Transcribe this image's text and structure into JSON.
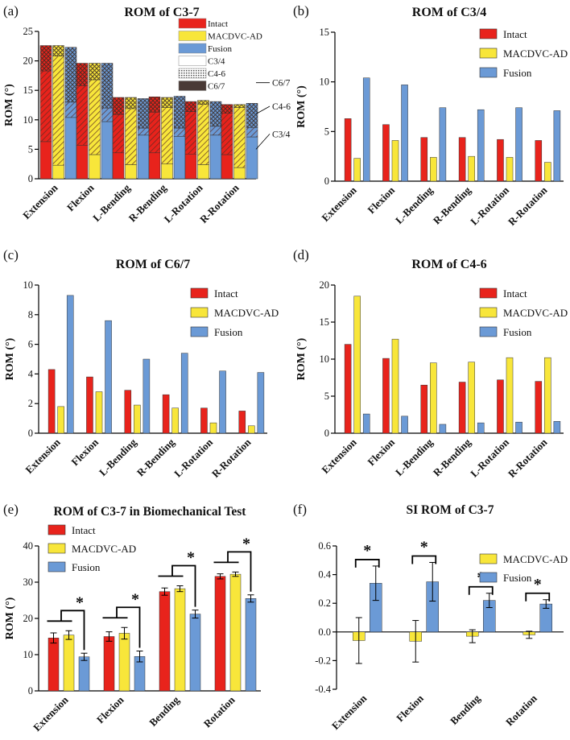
{
  "colors": {
    "intact": "#e8231c",
    "macdvc": "#f8e63a",
    "fusion": "#6b9ad6",
    "errbar": "#000000",
    "hatch": "#5a2a22"
  },
  "legend_labels": {
    "intact": "Intact",
    "macdvc": "MACDVC-AD",
    "fusion": "Fusion",
    "c34": "C3/4",
    "c46": "C4-6",
    "c67": "C6/7"
  },
  "chart_data": [
    {
      "panel": "(a)",
      "type": "bar",
      "stacked": true,
      "title": "ROM of C3-7",
      "ylabel": "ROM (°)",
      "ylim": [
        0,
        25
      ],
      "yticks": [
        0,
        5,
        10,
        15,
        20,
        25
      ],
      "categories": [
        "Extension",
        "Flexion",
        "L-Bending",
        "R-Bending",
        "L-Rotation",
        "R-Rotation"
      ],
      "groups": [
        "Intact",
        "MACDVC-AD",
        "Fusion"
      ],
      "segments": [
        "C3/4",
        "C4-6",
        "C6/7"
      ],
      "series": [
        {
          "name": "Intact",
          "c34": [
            6.3,
            5.7,
            4.4,
            4.4,
            4.2,
            4.1
          ],
          "c46": [
            12.0,
            10.1,
            6.5,
            6.9,
            7.2,
            7.0
          ],
          "c67": [
            4.3,
            3.8,
            2.9,
            2.6,
            1.7,
            1.5
          ]
        },
        {
          "name": "MACDVC-AD",
          "c34": [
            2.3,
            4.1,
            2.4,
            2.5,
            2.4,
            1.9
          ],
          "c46": [
            18.5,
            12.7,
            9.5,
            9.6,
            10.2,
            10.2
          ],
          "c67": [
            1.8,
            2.8,
            1.9,
            1.7,
            0.7,
            0.5
          ]
        },
        {
          "name": "Fusion",
          "c34": [
            10.4,
            9.7,
            7.4,
            7.2,
            7.4,
            7.1
          ],
          "c46": [
            2.6,
            2.3,
            1.2,
            1.4,
            1.5,
            1.6
          ],
          "c67": [
            9.3,
            7.6,
            5.0,
            5.4,
            4.2,
            4.1
          ]
        }
      ],
      "annotations": [
        "C6/7",
        "C4-6",
        "C3/4"
      ]
    },
    {
      "panel": "(b)",
      "type": "bar",
      "title": "ROM of C3/4",
      "ylabel": "ROM (°)",
      "ylim": [
        0,
        15
      ],
      "yticks": [
        0,
        5,
        10,
        15
      ],
      "categories": [
        "Extension",
        "Flexion",
        "L-Bending",
        "R-Bending",
        "L-Rotation",
        "R-Rotation"
      ],
      "series": [
        {
          "name": "Intact",
          "values": [
            6.3,
            5.7,
            4.4,
            4.4,
            4.2,
            4.1
          ]
        },
        {
          "name": "MACDVC-AD",
          "values": [
            2.3,
            4.1,
            2.4,
            2.5,
            2.4,
            1.9
          ]
        },
        {
          "name": "Fusion",
          "values": [
            10.4,
            9.7,
            7.4,
            7.2,
            7.4,
            7.1
          ]
        }
      ]
    },
    {
      "panel": "(c)",
      "type": "bar",
      "title": "ROM of C6/7",
      "ylabel": "ROM (°)",
      "ylim": [
        0,
        10
      ],
      "yticks": [
        0,
        2,
        4,
        6,
        8,
        10
      ],
      "categories": [
        "Extension",
        "Flexion",
        "L-Bending",
        "R-Bending",
        "L-Rotation",
        "R-Rotation"
      ],
      "series": [
        {
          "name": "Intact",
          "values": [
            4.3,
            3.8,
            2.9,
            2.6,
            1.7,
            1.5
          ]
        },
        {
          "name": "MACDVC-AD",
          "values": [
            1.8,
            2.8,
            1.9,
            1.7,
            0.7,
            0.5
          ]
        },
        {
          "name": "Fusion",
          "values": [
            9.3,
            7.6,
            5.0,
            5.4,
            4.2,
            4.1
          ]
        }
      ]
    },
    {
      "panel": "(d)",
      "type": "bar",
      "title": "ROM of C4-6",
      "ylabel": "ROM (°)",
      "ylim": [
        0,
        20
      ],
      "yticks": [
        0,
        5,
        10,
        15,
        20
      ],
      "categories": [
        "Extension",
        "Flexion",
        "L-Bending",
        "R-Bending",
        "L-Rotation",
        "R-Rotation"
      ],
      "series": [
        {
          "name": "Intact",
          "values": [
            12.0,
            10.1,
            6.5,
            6.9,
            7.2,
            7.0
          ]
        },
        {
          "name": "MACDVC-AD",
          "values": [
            18.5,
            12.7,
            9.5,
            9.6,
            10.2,
            10.2
          ]
        },
        {
          "name": "Fusion",
          "values": [
            2.6,
            2.3,
            1.2,
            1.4,
            1.5,
            1.6
          ]
        }
      ]
    },
    {
      "panel": "(e)",
      "type": "bar",
      "title": "ROM of C3-7 in Biomechanical Test",
      "ylabel": "ROM (°)",
      "ylim": [
        0,
        40
      ],
      "yticks": [
        0,
        10,
        20,
        30,
        40
      ],
      "categories": [
        "Extension",
        "Flexion",
        "Bending",
        "Rotation"
      ],
      "series": [
        {
          "name": "Intact",
          "values": [
            14.6,
            15.0,
            27.4,
            31.6
          ],
          "errors": [
            1.4,
            1.3,
            1.0,
            0.7
          ]
        },
        {
          "name": "MACDVC-AD",
          "values": [
            15.4,
            15.9,
            28.2,
            32.2
          ],
          "errors": [
            1.2,
            1.6,
            0.8,
            0.6
          ]
        },
        {
          "name": "Fusion",
          "values": [
            9.4,
            9.5,
            21.2,
            25.5
          ],
          "errors": [
            1.0,
            1.5,
            1.1,
            1.0
          ]
        }
      ],
      "significance": [
        "*",
        "*",
        "*",
        "*"
      ]
    },
    {
      "panel": "(f)",
      "type": "bar",
      "title": "SI ROM of C3-7",
      "ylabel": "",
      "ylim": [
        -0.4,
        0.6
      ],
      "yticks": [
        -0.4,
        -0.2,
        0.0,
        0.2,
        0.4,
        0.6
      ],
      "categories": [
        "Extension",
        "Flexion",
        "Bending",
        "Rotation"
      ],
      "series": [
        {
          "name": "MACDVC-AD",
          "values": [
            -0.06,
            -0.065,
            -0.03,
            -0.02
          ],
          "errors": [
            0.16,
            0.145,
            0.045,
            0.025
          ]
        },
        {
          "name": "Fusion",
          "values": [
            0.34,
            0.35,
            0.22,
            0.195
          ],
          "errors": [
            0.12,
            0.135,
            0.05,
            0.03
          ]
        }
      ],
      "significance": [
        "*",
        "*",
        "*",
        "*"
      ]
    }
  ]
}
